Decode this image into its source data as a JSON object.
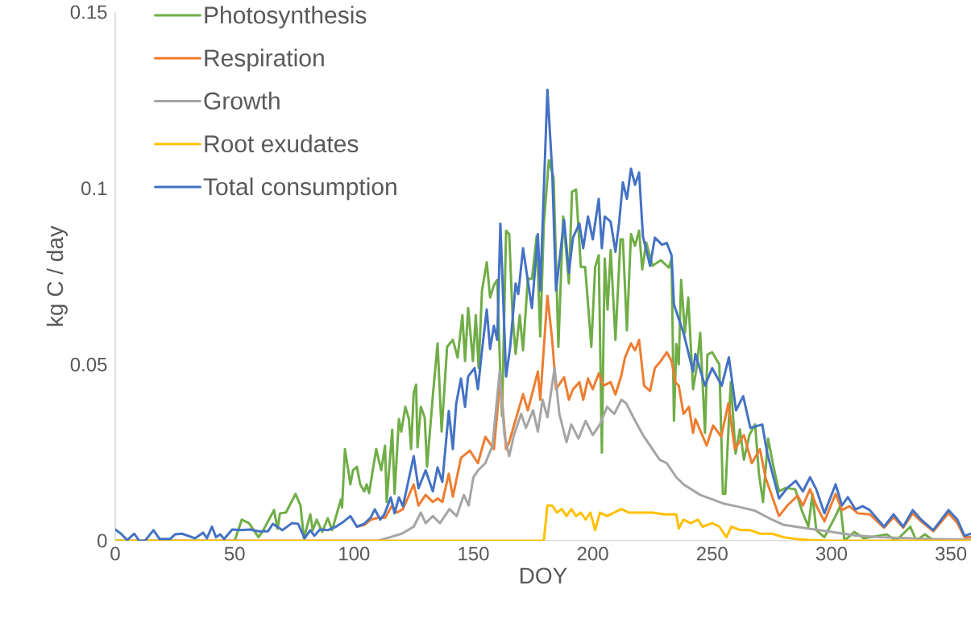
{
  "chart_data": {
    "type": "line",
    "xlabel": "DOY",
    "ylabel": "kg C / day",
    "xlim": [
      0,
      358.4
    ],
    "ylim": [
      0,
      0.15
    ],
    "xticks": [
      0,
      50,
      100,
      150,
      200,
      250,
      300,
      350
    ],
    "yticks": [
      0,
      0.05,
      0.1,
      0.15
    ],
    "legend": "top left",
    "marker": "none",
    "line_style": "solid",
    "series": [
      {
        "name": "Photosynthesis",
        "color": "#70ad47",
        "x": [
          0,
          50,
          53,
          56,
          60,
          62,
          66.5,
          68,
          69,
          71.5,
          75.5,
          77.6,
          79,
          81.7,
          82.7,
          84.4,
          86.7,
          89,
          90.8,
          94.5,
          95,
          96.2,
          98.5,
          99.6,
          101.2,
          102.6,
          104.3,
          105.3,
          106.3,
          109.3,
          111.4,
          113,
          113.7,
          116,
          117,
          118.8,
          119.8,
          121.5,
          123,
          123.9,
          125,
          126,
          126.6,
          128,
          129.6,
          130.6,
          133,
          135,
          136.7,
          139,
          141.4,
          143.4,
          145.4,
          146.5,
          147.8,
          149.8,
          151,
          152.2,
          153.6,
          155.6,
          157,
          158.6,
          160,
          161.3,
          162,
          163.7,
          165,
          166.4,
          167.7,
          169.4,
          170.8,
          172.8,
          174.5,
          176.5,
          178,
          179.5,
          181.6,
          183.6,
          185.6,
          187.6,
          190,
          191.3,
          193,
          195,
          196.8,
          199.4,
          201,
          202.5,
          203.8,
          205,
          206.2,
          207.5,
          209.5,
          211.6,
          212.6,
          214.3,
          216,
          217.7,
          219.4,
          220.7,
          222.4,
          225,
          228.5,
          231.9,
          233,
          234,
          235,
          236,
          237,
          238.6,
          240,
          242,
          243.7,
          245,
          247,
          248,
          250,
          253,
          254.5,
          255.5,
          257.8,
          259.8,
          261.6,
          263.3,
          265.6,
          268,
          269.6,
          271.3,
          273.4,
          275.7,
          278,
          280.8,
          284.8,
          287.5,
          290.3,
          292,
          293.6,
          297,
          301.7,
          303.7,
          305.4,
          309.5,
          313.5,
          323,
          327,
          333,
          335.5,
          339,
          343,
          358.4
        ],
        "values": [
          0,
          0,
          0.006,
          0.005,
          0.001,
          0.003,
          0.0087,
          0.0034,
          0.0078,
          0.008,
          0.0133,
          0.01,
          0.0007,
          0.0075,
          0.003,
          0.006,
          0.0025,
          0.0064,
          0.003,
          0.0117,
          0.0094,
          0.026,
          0.016,
          0.02,
          0.021,
          0.016,
          0.014,
          0.016,
          0.0135,
          0.026,
          0.02,
          0.027,
          0.011,
          0.0315,
          0.0133,
          0.0345,
          0.031,
          0.038,
          0.0345,
          0.026,
          0.042,
          0.0443,
          0.0265,
          0.038,
          0.035,
          0.021,
          0.041,
          0.056,
          0.031,
          0.055,
          0.057,
          0.052,
          0.064,
          0.051,
          0.066,
          0.051,
          0.064,
          0.049,
          0.071,
          0.079,
          0.069,
          0.0725,
          0.074,
          0.0466,
          0.0354,
          0.088,
          0.087,
          0.064,
          0.053,
          0.064,
          0.054,
          0.0743,
          0.0743,
          0.0864,
          0.058,
          0.0898,
          0.108,
          0.103,
          0.055,
          0.092,
          0.073,
          0.099,
          0.0997,
          0.0777,
          0.0777,
          0.055,
          0.0777,
          0.081,
          0.025,
          0.08,
          0.0656,
          0.0825,
          0.057,
          0.0855,
          0.0855,
          0.0597,
          0.087,
          0.0837,
          0.088,
          0.077,
          0.0846,
          0.078,
          0.0796,
          0.0775,
          0.08,
          0.034,
          0.0558,
          0.05,
          0.074,
          0.059,
          0.069,
          0.043,
          0.05,
          0.059,
          0.0306,
          0.0528,
          0.0535,
          0.05,
          0.0133,
          0.0133,
          0.045,
          0.0247,
          0.0316,
          0.023,
          0.03,
          0.033,
          0.019,
          0.011,
          0.029,
          0.021,
          0.014,
          0.015,
          0.0146,
          0.0087,
          0.004,
          0.0133,
          0.003,
          0.001,
          0.007,
          0.01,
          0,
          0.0025,
          0.0007,
          0.0018,
          0,
          0.004,
          0,
          0.0018,
          0,
          0
        ]
      },
      {
        "name": "Respiration",
        "color": "#ed7d31",
        "x": [
          101.2,
          104.3,
          107,
          110,
          113,
          116,
          118,
          120.5,
          125,
          127,
          130,
          133,
          135,
          137,
          139.7,
          141.4,
          144.8,
          148.5,
          151.9,
          155,
          158.6,
          161.3,
          163.7,
          165,
          170.8,
          172.8,
          177,
          178,
          181,
          183,
          184.6,
          188,
          190,
          191.7,
          194.4,
          196,
          198,
          200,
          202.5,
          204.4,
          207.5,
          209.5,
          212,
          213.5,
          216,
          217.7,
          219.4,
          221.5,
          224,
          226,
          228.5,
          231,
          233,
          234.6,
          236,
          238,
          240.3,
          242,
          243,
          247.7,
          250.4,
          253.8,
          256.8,
          259.5,
          263.3,
          266.6,
          270,
          272.4,
          278,
          281.5,
          285.8,
          288,
          291,
          293.6,
          297,
          301.7,
          304.4,
          307.5,
          311,
          316,
          322,
          326,
          330,
          334,
          337.5,
          342.6,
          349,
          352.7,
          355.7,
          358.4
        ],
        "values": [
          0.004,
          0.0045,
          0.006,
          0.0065,
          0.0065,
          0.01,
          0.008,
          0.009,
          0.016,
          0.01,
          0.013,
          0.011,
          0.012,
          0.011,
          0.019,
          0.0125,
          0.0235,
          0.0256,
          0.022,
          0.0295,
          0.026,
          0.046,
          0.026,
          0.028,
          0.0416,
          0.037,
          0.048,
          0.04,
          0.0695,
          0.057,
          0.043,
          0.0464,
          0.04,
          0.043,
          0.045,
          0.04,
          0.046,
          0.043,
          0.0475,
          0.044,
          0.045,
          0.0415,
          0.047,
          0.052,
          0.056,
          0.054,
          0.057,
          0.044,
          0.0425,
          0.049,
          0.051,
          0.0535,
          0.051,
          0.045,
          0.044,
          0.036,
          0.038,
          0.0306,
          0.0345,
          0.027,
          0.0327,
          0.0295,
          0.039,
          0.026,
          0.03,
          0.022,
          0.026,
          0.0178,
          0.007,
          0.01,
          0.0128,
          0.01,
          0.0146,
          0.01,
          0.0055,
          0.0133,
          0.0087,
          0.0098,
          0.0078,
          0.0075,
          0.0037,
          0.0067,
          0.0037,
          0.0078,
          0.0055,
          0.0027,
          0.0078,
          0.005,
          0.001,
          0.001
        ]
      },
      {
        "name": "Growth",
        "color": "#a5a5a5",
        "x": [
          0,
          110,
          115,
          120,
          125,
          128,
          130,
          133,
          136,
          140,
          143,
          146,
          148,
          150,
          152,
          155,
          158,
          161,
          163,
          165,
          167,
          170,
          172,
          175,
          177,
          179,
          181,
          184,
          186,
          189,
          191,
          194,
          197,
          200,
          203,
          206,
          209,
          212,
          214,
          217,
          221,
          224,
          228,
          231,
          235,
          238,
          245,
          251,
          255,
          260,
          265,
          268,
          275,
          280,
          290,
          300,
          310,
          320,
          340,
          358.4
        ],
        "values": [
          0,
          0,
          0.001,
          0.002,
          0.004,
          0.008,
          0.005,
          0.007,
          0.005,
          0.009,
          0.007,
          0.013,
          0.01,
          0.018,
          0.02,
          0.022,
          0.027,
          0.048,
          0.03,
          0.024,
          0.03,
          0.036,
          0.032,
          0.037,
          0.031,
          0.04,
          0.035,
          0.049,
          0.036,
          0.028,
          0.033,
          0.029,
          0.034,
          0.03,
          0.033,
          0.038,
          0.036,
          0.04,
          0.039,
          0.035,
          0.03,
          0.027,
          0.023,
          0.022,
          0.018,
          0.016,
          0.013,
          0.0115,
          0.0105,
          0.0098,
          0.009,
          0.0085,
          0.006,
          0.0045,
          0.0035,
          0.0025,
          0.0015,
          0.001,
          0.0005,
          0.0003
        ]
      },
      {
        "name": "Root exudates",
        "color": "#ffc000",
        "x": [
          0,
          179.5,
          181,
          183,
          185,
          187,
          189,
          191,
          193,
          195,
          197,
          199,
          201,
          203,
          206,
          209,
          212,
          215,
          220,
          225,
          230,
          235,
          236,
          238,
          241,
          244,
          246,
          250,
          253,
          256,
          258,
          262,
          266,
          270,
          275,
          280,
          285,
          290,
          300,
          358.4
        ],
        "values": [
          0,
          0,
          0.01,
          0.01,
          0.008,
          0.009,
          0.007,
          0.009,
          0.007,
          0.008,
          0.006,
          0.008,
          0.003,
          0.008,
          0.007,
          0.008,
          0.009,
          0.008,
          0.008,
          0.008,
          0.0075,
          0.0075,
          0.0035,
          0.006,
          0.005,
          0.006,
          0.004,
          0.005,
          0.004,
          0.001,
          0.004,
          0.003,
          0.003,
          0.002,
          0.002,
          0.001,
          0.0005,
          0.0002,
          0,
          0
        ]
      },
      {
        "name": "Total consumption",
        "color": "#4472c4",
        "x": [
          0,
          2.4,
          5,
          8,
          10,
          12.5,
          16,
          18.6,
          23,
          25,
          28,
          33.4,
          36.8,
          38.4,
          40.5,
          42.2,
          44,
          45.6,
          49,
          53,
          56.4,
          60,
          64,
          66,
          70,
          74,
          76.6,
          79.3,
          81.7,
          83.4,
          85.7,
          89,
          92.5,
          95.8,
          98.5,
          101.2,
          104.3,
          107,
          108.7,
          111,
          112.7,
          115.4,
          117,
          118.8,
          120.5,
          125,
          127,
          130,
          133,
          135,
          137,
          139.7,
          141.4,
          142.8,
          144.8,
          146.5,
          147.8,
          150.5,
          151.9,
          153.6,
          155.6,
          157,
          158.6,
          160,
          161.3,
          163.7,
          165.4,
          167.7,
          168.8,
          170.8,
          174.5,
          177,
          178,
          181,
          183,
          184.6,
          188,
          190,
          191.7,
          194.4,
          196,
          198,
          200,
          202.5,
          203.8,
          205,
          207.5,
          209.5,
          211,
          212.6,
          214.3,
          216,
          217.7,
          219.4,
          221,
          224,
          226,
          229,
          231,
          233,
          234,
          238,
          242,
          243,
          247,
          250,
          254,
          257,
          260,
          263,
          266,
          271,
          273,
          278,
          281.5,
          285,
          288,
          291,
          293.6,
          297,
          301.7,
          304.4,
          306.8,
          310,
          313,
          316,
          322,
          326,
          330,
          334,
          337.5,
          342.6,
          349,
          352.7,
          355.7,
          358.4
        ],
        "values": [
          0.0032,
          0.002,
          0.0002,
          0.002,
          0,
          0,
          0.003,
          0.0005,
          0.0005,
          0.0018,
          0.002,
          0.0007,
          0.0023,
          0.0007,
          0.004,
          0.001,
          0.0018,
          0.0005,
          0.0032,
          0.003,
          0.0032,
          0.0027,
          0.0027,
          0.0048,
          0.003,
          0.005,
          0.0048,
          0.0007,
          0.003,
          0.0014,
          0.0032,
          0.003,
          0.004,
          0.0055,
          0.007,
          0.004,
          0.0048,
          0.0066,
          0.0089,
          0.006,
          0.0075,
          0.0123,
          0.0078,
          0.0123,
          0.0098,
          0.024,
          0.0149,
          0.02,
          0.014,
          0.0208,
          0.0167,
          0.0368,
          0.026,
          0.0389,
          0.046,
          0.038,
          0.0466,
          0.049,
          0.043,
          0.054,
          0.0656,
          0.0544,
          0.061,
          0.057,
          0.09,
          0.0466,
          0.055,
          0.073,
          0.07,
          0.083,
          0.066,
          0.087,
          0.071,
          0.128,
          0.105,
          0.071,
          0.091,
          0.076,
          0.086,
          0.09,
          0.083,
          0.092,
          0.0855,
          0.097,
          0.083,
          0.092,
          0.0905,
          0.082,
          0.09,
          0.1017,
          0.097,
          0.1056,
          0.101,
          0.1045,
          0.0864,
          0.078,
          0.086,
          0.084,
          0.0845,
          0.081,
          0.067,
          0.059,
          0.048,
          0.053,
          0.044,
          0.049,
          0.044,
          0.052,
          0.037,
          0.041,
          0.032,
          0.033,
          0.025,
          0.012,
          0.015,
          0.017,
          0.014,
          0.018,
          0.0146,
          0.0078,
          0.016,
          0.01,
          0.0124,
          0.0089,
          0.0098,
          0.0087,
          0.004,
          0.0075,
          0.004,
          0.0087,
          0.006,
          0.003,
          0.0087,
          0.006,
          0.0014,
          0.002
        ]
      }
    ]
  }
}
